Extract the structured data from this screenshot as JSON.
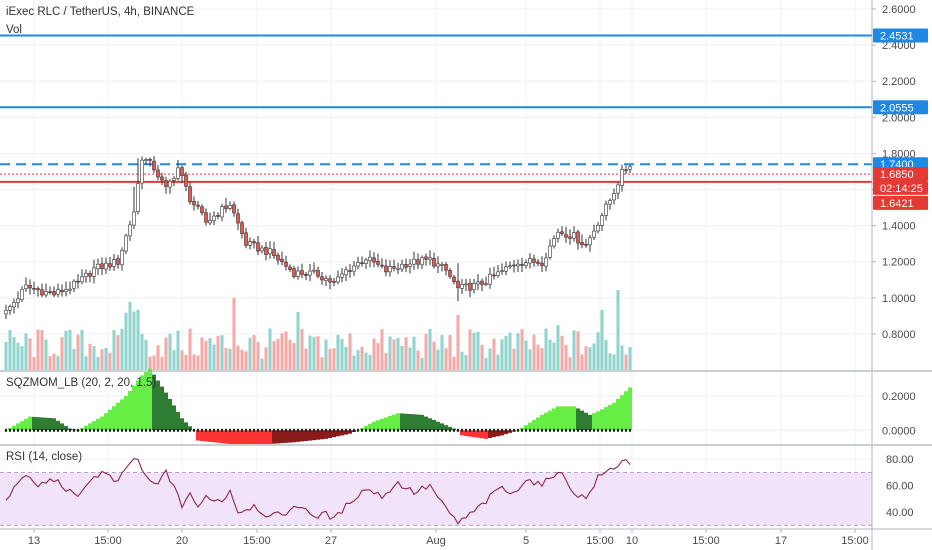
{
  "header": {
    "title": "iExec RLC / TetherUS, 4h, BINANCE",
    "vol_label": "Vol"
  },
  "colors": {
    "up": "#26a69a",
    "up_fill": "#ffffff",
    "down": "#ef5350",
    "candle_outline": "#333333",
    "vol_up": "#8fd3cd",
    "vol_down": "#f5a8a6",
    "blue_line": "#1e88e5",
    "red_line": "#e53935",
    "rsi_line": "#8e2749",
    "rsi_band": "#f0e3fa",
    "mom_lime": "#66ee44",
    "mom_green": "#2e7d32",
    "mom_red": "#ff3333",
    "mom_maroon": "#8b1a1a"
  },
  "chart_data": [
    {
      "type": "candlestick",
      "pane": "price",
      "symbol": "RLC/USDT",
      "timeframe": "4h",
      "exchange": "BINANCE",
      "ylim": [
        0.6,
        2.65
      ],
      "yticks": [
        "2.6000",
        "2.4000",
        "2.2000",
        "2.0000",
        "1.8000",
        "1.6000",
        "1.4000",
        "1.2000",
        "1.0000",
        "0.8000"
      ],
      "y_values": [
        2.6,
        2.4,
        2.2,
        2.0,
        1.8,
        1.6,
        1.4,
        1.2,
        1.0,
        0.8
      ],
      "x_axis_labels": [
        "13",
        "15:00",
        "20",
        "15:00",
        "27",
        "Aug",
        "5",
        "15:00",
        "10",
        "15:00",
        "17",
        "15:00"
      ],
      "anchors": [
        [
          0,
          0.92
        ],
        [
          5,
          1.06
        ],
        [
          12,
          1.02
        ],
        [
          18,
          1.08
        ],
        [
          22,
          1.16
        ],
        [
          28,
          1.2
        ],
        [
          32,
          1.48
        ],
        [
          34,
          1.78
        ],
        [
          37,
          1.72
        ],
        [
          40,
          1.6
        ],
        [
          43,
          1.72
        ],
        [
          46,
          1.55
        ],
        [
          50,
          1.42
        ],
        [
          56,
          1.52
        ],
        [
          60,
          1.3
        ],
        [
          66,
          1.25
        ],
        [
          72,
          1.14
        ],
        [
          78,
          1.13
        ],
        [
          82,
          1.08
        ],
        [
          85,
          1.15
        ],
        [
          90,
          1.22
        ],
        [
          95,
          1.15
        ],
        [
          100,
          1.19
        ],
        [
          106,
          1.21
        ],
        [
          110,
          1.15
        ],
        [
          113,
          1.05
        ],
        [
          118,
          1.07
        ],
        [
          122,
          1.12
        ],
        [
          128,
          1.2
        ],
        [
          134,
          1.2
        ],
        [
          138,
          1.37
        ],
        [
          142,
          1.34
        ],
        [
          145,
          1.29
        ],
        [
          148,
          1.42
        ],
        [
          151,
          1.54
        ],
        [
          154,
          1.69
        ],
        [
          156,
          1.74
        ]
      ],
      "horizontal_lines": [
        {
          "value": 2.4531,
          "label": "2.4531",
          "style": "solid",
          "color": "#1e88e5"
        },
        {
          "value": 2.0555,
          "label": "2.0555",
          "style": "solid",
          "color": "#1e88e5"
        },
        {
          "value": 1.74,
          "label": "1.7400",
          "style": "dashed",
          "color": "#1e88e5"
        },
        {
          "value": 1.685,
          "label": "1.6850",
          "style": "dotted",
          "color": "#e53935"
        },
        {
          "value": 1.6421,
          "label": "1.6421",
          "style": "solid",
          "color": "#e53935"
        }
      ],
      "countdown_label": "02:14:25"
    },
    {
      "type": "histogram",
      "pane": "momentum",
      "name": "SQZMOM_LB (20, 2, 20, 1.5)",
      "ylim": [
        -0.08,
        0.34
      ],
      "yticks": [
        "0.2000",
        "0.0000"
      ],
      "y_values": [
        0.2,
        0.0
      ],
      "anchors": [
        [
          0,
          0.0
        ],
        [
          6,
          0.08
        ],
        [
          12,
          0.07
        ],
        [
          16,
          0.01
        ],
        [
          18,
          0.0
        ],
        [
          24,
          0.08
        ],
        [
          30,
          0.2
        ],
        [
          34,
          0.32
        ],
        [
          36,
          0.36
        ],
        [
          40,
          0.22
        ],
        [
          44,
          0.07
        ],
        [
          47,
          0.0
        ],
        [
          48,
          -0.06
        ],
        [
          56,
          -0.08
        ],
        [
          66,
          -0.08
        ],
        [
          72,
          -0.07
        ],
        [
          80,
          -0.05
        ],
        [
          86,
          -0.02
        ],
        [
          88,
          0.0
        ],
        [
          92,
          0.05
        ],
        [
          98,
          0.1
        ],
        [
          104,
          0.09
        ],
        [
          110,
          0.03
        ],
        [
          113,
          0.0
        ],
        [
          114,
          -0.03
        ],
        [
          120,
          -0.05
        ],
        [
          124,
          -0.03
        ],
        [
          128,
          0.0
        ],
        [
          134,
          0.09
        ],
        [
          138,
          0.14
        ],
        [
          142,
          0.14
        ],
        [
          146,
          0.09
        ],
        [
          148,
          0.11
        ],
        [
          152,
          0.16
        ],
        [
          156,
          0.25
        ]
      ]
    },
    {
      "type": "line",
      "pane": "rsi",
      "name": "RSI (14, close)",
      "ylim": [
        28,
        90
      ],
      "band": [
        30,
        70
      ],
      "yticks": [
        "80.00",
        "60.00",
        "40.00"
      ],
      "y_values": [
        80,
        60,
        40
      ],
      "anchors": [
        [
          0,
          48
        ],
        [
          4,
          68
        ],
        [
          8,
          60
        ],
        [
          12,
          65
        ],
        [
          16,
          55
        ],
        [
          18,
          50
        ],
        [
          20,
          62
        ],
        [
          24,
          70
        ],
        [
          28,
          62
        ],
        [
          31,
          78
        ],
        [
          33,
          80
        ],
        [
          35,
          65
        ],
        [
          38,
          60
        ],
        [
          40,
          72
        ],
        [
          42,
          58
        ],
        [
          44,
          45
        ],
        [
          46,
          55
        ],
        [
          48,
          42
        ],
        [
          50,
          52
        ],
        [
          54,
          48
        ],
        [
          56,
          57
        ],
        [
          58,
          40
        ],
        [
          62,
          45
        ],
        [
          66,
          36
        ],
        [
          70,
          40
        ],
        [
          74,
          45
        ],
        [
          78,
          35
        ],
        [
          80,
          40
        ],
        [
          82,
          34
        ],
        [
          86,
          48
        ],
        [
          90,
          58
        ],
        [
          94,
          52
        ],
        [
          98,
          62
        ],
        [
          102,
          55
        ],
        [
          106,
          60
        ],
        [
          110,
          42
        ],
        [
          113,
          32
        ],
        [
          116,
          38
        ],
        [
          120,
          48
        ],
        [
          124,
          60
        ],
        [
          126,
          52
        ],
        [
          130,
          65
        ],
        [
          134,
          60
        ],
        [
          138,
          72
        ],
        [
          142,
          55
        ],
        [
          145,
          50
        ],
        [
          148,
          66
        ],
        [
          152,
          74
        ],
        [
          155,
          80
        ],
        [
          157,
          75
        ]
      ]
    }
  ]
}
